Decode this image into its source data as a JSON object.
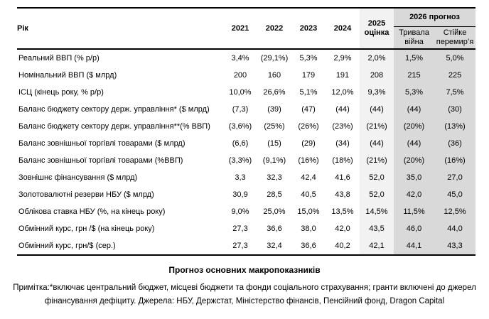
{
  "colors": {
    "shade_2025": "#f2f2f2",
    "shade_2026": "#d9d9d9",
    "border": "#000000"
  },
  "header": {
    "year_label": "Рік",
    "years": [
      "2021",
      "2022",
      "2023",
      "2024"
    ],
    "estimate_label": "2025\nоцінка",
    "forecast_label": "2026 прогноз",
    "scenario_war": "Тривала\nвійна",
    "scenario_truce": "Стійке\nперемир’я"
  },
  "chart_data": {
    "type": "table",
    "title": "Прогноз основних макропоказників",
    "columns": [
      "Рік",
      "2021",
      "2022",
      "2023",
      "2024",
      "2025 оцінка",
      "2026 прогноз — Тривала війна",
      "2026 прогноз — Стійке перемир’я"
    ],
    "rows": [
      {
        "label": "Реальний ВВП (% р/р)",
        "values": [
          "3,4%",
          "(29,1%)",
          "5,3%",
          "2,9%",
          "2,0%",
          "1,5%",
          "5,0%"
        ]
      },
      {
        "label": "Номінальний ВВП ($ млрд)",
        "values": [
          "200",
          "160",
          "179",
          "191",
          "208",
          "215",
          "225"
        ]
      },
      {
        "label": "ІСЦ (кінець року, % р/р)",
        "values": [
          "10,0%",
          "26,6%",
          "5,1%",
          "12,0%",
          "9,3%",
          "5,3%",
          "7,5%"
        ]
      },
      {
        "label": "Баланс бюджету сектору держ. управління* ($ млрд)",
        "values": [
          "(7,3)",
          "(39)",
          "(47)",
          "(44)",
          "(44)",
          "(44)",
          "(30)"
        ]
      },
      {
        "label": "Баланс бюджету сектору держ. управління**(% ВВП)",
        "values": [
          "(3,6%)",
          "(25%)",
          "(26%)",
          "(23%)",
          "(21%)",
          "(20%)",
          "(13%)"
        ]
      },
      {
        "label": "Баланс зовнішньої торгівлі товарами ($ млрд)",
        "values": [
          "(6,6)",
          "(15)",
          "(29)",
          "(34)",
          "(44)",
          "(44)",
          "(36)"
        ]
      },
      {
        "label": "Баланс зовнішньої торгівлі товарами (%ВВП)",
        "values": [
          "(3,3%)",
          "(9,1%)",
          "(16%)",
          "(18%)",
          "(21%)",
          "(20%)",
          "(16%)"
        ]
      },
      {
        "label": "Зовнішнє фінансування ($ млрд)",
        "values": [
          "3,3",
          "32,3",
          "42,4",
          "41,6",
          "52,0",
          "35,0",
          "27,0"
        ]
      },
      {
        "label": "Золотовалютні резерви НБУ ($ млрд)",
        "values": [
          "30,9",
          "28,5",
          "40,5",
          "43,8",
          "52,0",
          "42,0",
          "45,0"
        ]
      },
      {
        "label": "Облікова ставка НБУ (%, на кінець року)",
        "values": [
          "9,0%",
          "25,0%",
          "15,0%",
          "13,5%",
          "14,5%",
          "11,5%",
          "12,5%"
        ]
      },
      {
        "label": "Обмінний курс, грн /$ (на кінець року)",
        "values": [
          "27,3",
          "36,6",
          "38,0",
          "42,0",
          "43,5",
          "46,0",
          "44,0"
        ]
      },
      {
        "label": "Обмінний курс, грн/$ (сер.)",
        "values": [
          "27,3",
          "32,4",
          "36,6",
          "40,2",
          "42,1",
          "44,1",
          "43,3"
        ]
      }
    ]
  },
  "caption": "Прогноз основних макропоказників",
  "footnote": "Примітка:*включає центральний бюджет, місцеві бюджети та фонди соціального страхування; гранти включені до джерел фінансування дефіциту. Джерела: НБУ, Держстат, Міністерство фінансів, Пенсійний фонд, Dragon Capital"
}
